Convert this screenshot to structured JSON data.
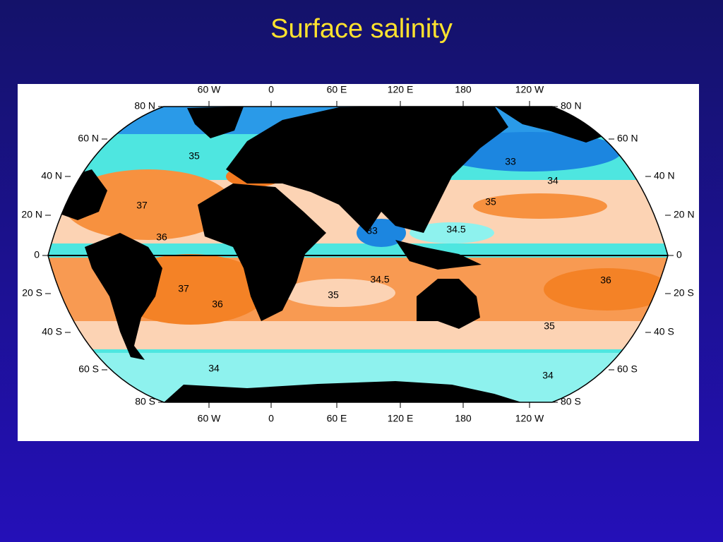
{
  "title": "Surface salinity",
  "map": {
    "lon_labels": [
      "60 W",
      "0",
      "60 E",
      "120 E",
      "180",
      "120 W"
    ],
    "lat_labels": [
      "80 N",
      "60 N",
      "40 N",
      "20 N",
      "0",
      "20 S",
      "40 S",
      "60 S",
      "80 S"
    ],
    "contour_labels": [
      "35",
      "37",
      "36",
      "37",
      "36",
      "34",
      "33",
      "34.5",
      "35",
      "33",
      "34",
      "35",
      "34.5",
      "36",
      "35",
      "34"
    ]
  }
}
